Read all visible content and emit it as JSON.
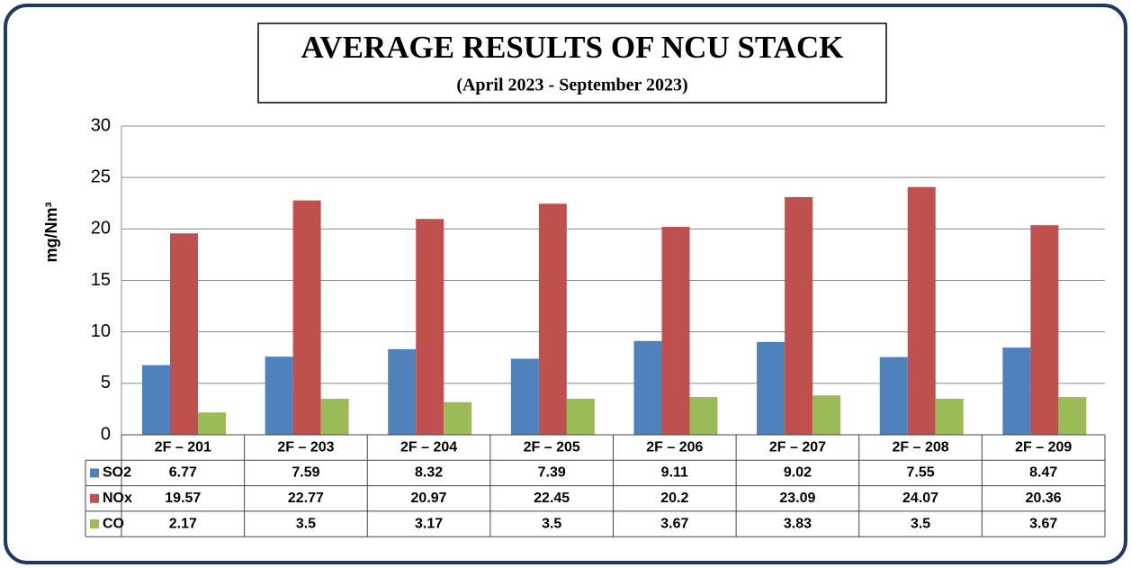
{
  "chart_data": {
    "type": "bar",
    "title": "AVERAGE RESULTS OF NCU STACK",
    "subtitle": "(April 2023 - September 2023)",
    "y_label": "mg/Nm³",
    "categories": [
      "2F – 201",
      "2F – 203",
      "2F – 204",
      "2F – 205",
      "2F – 206",
      "2F – 207",
      "2F – 208",
      "2F – 209"
    ],
    "series": [
      {
        "name": "SO2",
        "color": "#4f81bd",
        "values": [
          6.77,
          7.59,
          8.32,
          7.39,
          9.11,
          9.02,
          7.55,
          8.47
        ]
      },
      {
        "name": "NOx",
        "color": "#c0504d",
        "values": [
          19.57,
          22.77,
          20.97,
          22.45,
          20.2,
          23.09,
          24.07,
          20.36
        ]
      },
      {
        "name": "CO",
        "color": "#9bbb59",
        "values": [
          2.17,
          3.5,
          3.17,
          3.5,
          3.67,
          3.83,
          3.5,
          3.67
        ]
      }
    ],
    "ylim": [
      0,
      30
    ],
    "yticks": [
      0,
      5,
      10,
      15,
      20,
      25,
      30
    ],
    "grid": true
  }
}
